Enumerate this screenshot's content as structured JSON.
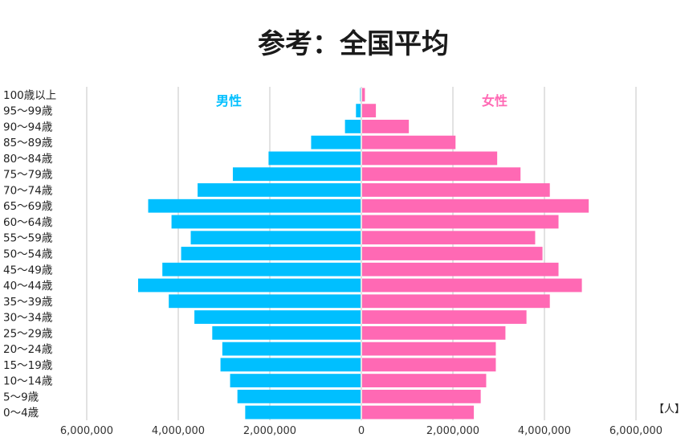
{
  "chart_data": {
    "type": "bar",
    "orientation": "horizontal",
    "layout": "population-pyramid",
    "title": "参考：全国平均",
    "unit_label": "【人】",
    "categories": [
      "100歳以上",
      "95〜99歳",
      "90〜94歳",
      "85〜89歳",
      "80〜84歳",
      "75〜79歳",
      "70〜74歳",
      "65〜69歳",
      "60〜64歳",
      "55〜59歳",
      "50〜54歳",
      "45〜49歳",
      "40〜44歳",
      "35〜39歳",
      "30〜34歳",
      "25〜29歳",
      "20〜24歳",
      "15〜19歳",
      "10〜14歳",
      "5〜9歳",
      "0〜4歳"
    ],
    "series": [
      {
        "name": "男性",
        "color": "#00BFFF",
        "side": "left",
        "values": [
          10000,
          100000,
          340000,
          1080000,
          2010000,
          2790000,
          3560000,
          4640000,
          4130000,
          3710000,
          3920000,
          4330000,
          4860000,
          4190000,
          3630000,
          3240000,
          3020000,
          3060000,
          2850000,
          2690000,
          2520000
        ]
      },
      {
        "name": "女性",
        "color": "#FF69B4",
        "side": "right",
        "values": [
          60000,
          300000,
          1020000,
          2040000,
          2950000,
          3460000,
          4100000,
          4950000,
          4290000,
          3780000,
          3940000,
          4290000,
          4800000,
          4100000,
          3590000,
          3130000,
          2920000,
          2920000,
          2710000,
          2590000,
          2440000
        ]
      }
    ],
    "x_ticks": [
      "6,000,000",
      "4,000,000",
      "2,000,000",
      "0",
      "2,000,000",
      "4,000,000",
      "6,000,000"
    ],
    "xlim": [
      -6000000,
      6000000
    ],
    "grid": true,
    "legend_placement": "inside-top"
  }
}
